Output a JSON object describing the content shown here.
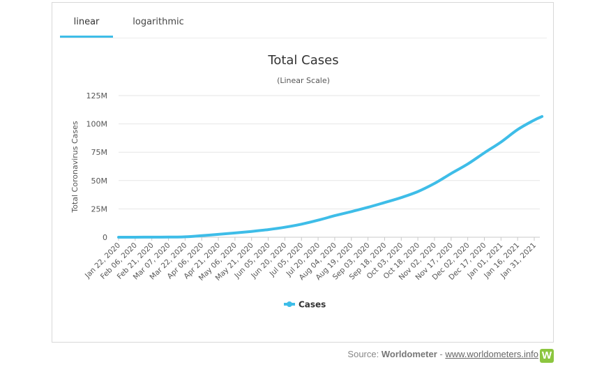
{
  "tabs": [
    {
      "label": "linear",
      "active": true
    },
    {
      "label": "logarithmic",
      "active": false
    }
  ],
  "footer": {
    "source_prefix": "Source: ",
    "source_name": "Worldometer",
    "separator": " - ",
    "source_link": "www.worldometers.info",
    "logo_letter": "W"
  },
  "colors": {
    "accent": "#3ebde8",
    "series": "#3ebde8",
    "grid": "#e6e6e6",
    "logo": "#8cc63f"
  },
  "chart_data": {
    "type": "line",
    "title": "Total Cases",
    "subtitle": "(Linear Scale)",
    "ylabel": "Total Coronavirus Cases",
    "xlabel": "",
    "ylim": [
      0,
      125000000
    ],
    "yticks": [
      {
        "value": 0,
        "label": "0"
      },
      {
        "value": 25000000,
        "label": "25M"
      },
      {
        "value": 50000000,
        "label": "50M"
      },
      {
        "value": 75000000,
        "label": "75M"
      },
      {
        "value": 100000000,
        "label": "100M"
      },
      {
        "value": 125000000,
        "label": "125M"
      }
    ],
    "xtick_labels": [
      "Jan 22, 2020",
      "Feb 06, 2020",
      "Feb 21, 2020",
      "Mar 07, 2020",
      "Mar 22, 2020",
      "Apr 06, 2020",
      "Apr 21, 2020",
      "May 06, 2020",
      "May 21, 2020",
      "Jun 05, 2020",
      "Jun 20, 2020",
      "Jul 05, 2020",
      "Jul 20, 2020",
      "Aug 04, 2020",
      "Aug 19, 2020",
      "Sep 03, 2020",
      "Sep 18, 2020",
      "Oct 03, 2020",
      "Oct 18, 2020",
      "Nov 02, 2020",
      "Nov 17, 2020",
      "Dec 02, 2020",
      "Dec 17, 2020",
      "Jan 01, 2021",
      "Jan 16, 2021",
      "Jan 31, 2021"
    ],
    "legend": {
      "position": "bottom-center"
    },
    "grid": true,
    "series": [
      {
        "name": "Cases",
        "values": [
          0.0006,
          0.03,
          0.08,
          0.11,
          0.34,
          1.35,
          2.55,
          3.75,
          5.1,
          6.7,
          8.8,
          11.5,
          15.0,
          19.0,
          22.6,
          26.4,
          30.6,
          35.0,
          40.3,
          47.5,
          56.2,
          64.6,
          74.5,
          84.0,
          95.0,
          103.4,
          106.5
        ]
      }
    ],
    "series_value_unit": "M",
    "x_points": [
      "Jan 22, 2020",
      "Feb 06, 2020",
      "Feb 21, 2020",
      "Mar 07, 2020",
      "Mar 22, 2020",
      "Apr 06, 2020",
      "Apr 21, 2020",
      "May 06, 2020",
      "May 21, 2020",
      "Jun 05, 2020",
      "Jun 20, 2020",
      "Jul 05, 2020",
      "Jul 20, 2020",
      "Aug 04, 2020",
      "Aug 19, 2020",
      "Sep 03, 2020",
      "Sep 18, 2020",
      "Oct 03, 2020",
      "Oct 18, 2020",
      "Nov 02, 2020",
      "Nov 17, 2020",
      "Dec 02, 2020",
      "Dec 17, 2020",
      "Jan 01, 2021",
      "Jan 16, 2021",
      "Jan 31, 2021",
      "Feb 07, 2021"
    ]
  }
}
